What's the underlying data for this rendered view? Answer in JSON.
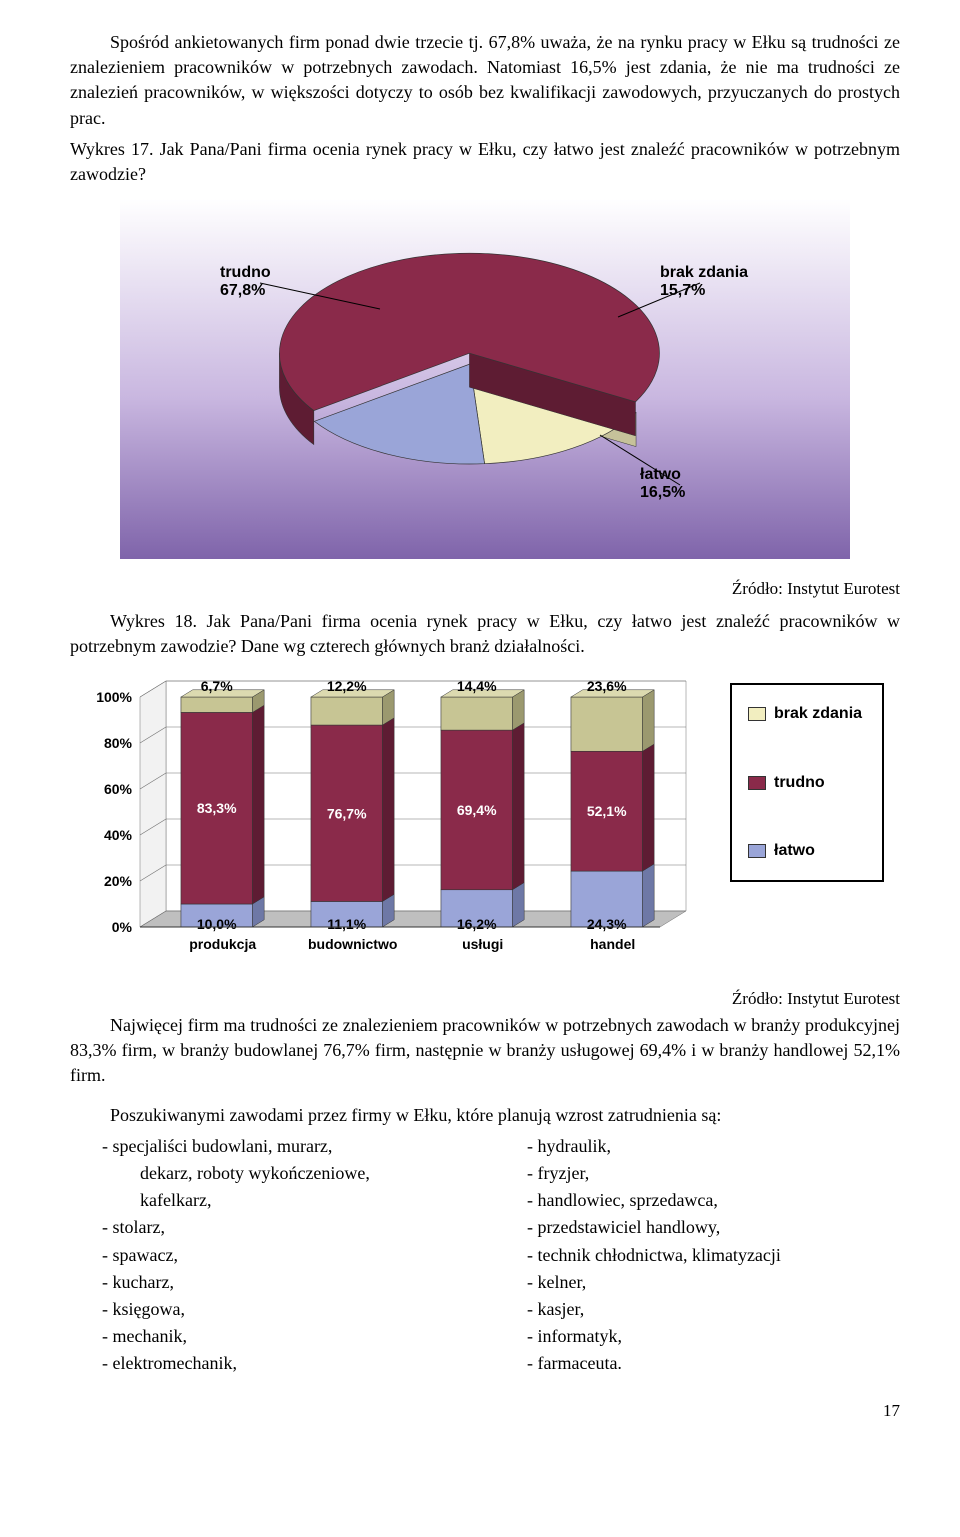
{
  "para1": "Spośród ankietowanych firm ponad dwie trzecie tj. 67,8% uważa, że na rynku pracy w Ełku są trudności ze znalezieniem pracowników w  potrzebnych zawodach. Natomiast 16,5% jest zdania, że nie ma trudności ze znalezień pracowników, w większości dotyczy to osób bez kwalifikacji zawodowych, przyuczanych do prostych prac.",
  "wykres17_caption": "Wykres 17.  Jak Pana/Pani firma ocenia rynek pracy w Ełku, czy łatwo jest znaleźć pracowników w potrzebnym zawodzie?",
  "pie": {
    "type": "pie",
    "slices": [
      {
        "label": "trudno",
        "pct": "67,8%",
        "value": 67.8,
        "color": "#8a2a4a",
        "side_color": "#5e1c33"
      },
      {
        "label": "brak zdania",
        "pct": "15,7%",
        "value": 15.7,
        "color": "#f2eec0",
        "side_color": "#c6c29a"
      },
      {
        "label": "łatwo",
        "pct": "16,5%",
        "value": 16.5,
        "color": "#9aa5d8",
        "side_color": "#6e78a6"
      }
    ],
    "background_top": "#ffffff",
    "background_mid": "#c9b7e0",
    "background_bottom": "#7f64aa",
    "label_font": "Arial",
    "label_fontsize": 16,
    "label_weight": "bold"
  },
  "source": "Źródło: Instytut Eurotest",
  "wykres18_caption": "Wykres 18.  Jak Pana/Pani firma ocenia rynek pracy w Ełku, czy łatwo jest znaleźć pracowników w potrzebnym zawodzie?   Dane wg czterech głównych branż działalności.",
  "bar": {
    "type": "stacked-bar-3d",
    "categories": [
      "produkcja",
      "budownictwo",
      "usługi",
      "handel"
    ],
    "series": [
      {
        "name": "łatwo",
        "color": "#9aa5d8",
        "top_color": "#b8c0e4",
        "side_color": "#6e78a6",
        "values": [
          10.0,
          11.1,
          16.2,
          24.3
        ],
        "labels": [
          "10,0%",
          "11,1%",
          "16,2%",
          "24,3%"
        ]
      },
      {
        "name": "trudno",
        "color": "#8a2a4a",
        "top_color": "#a84a66",
        "side_color": "#5e1c33",
        "values": [
          83.3,
          76.7,
          69.4,
          52.1
        ],
        "labels": [
          "83,3%",
          "76,7%",
          "69,4%",
          "52,1%"
        ]
      },
      {
        "name": "brak zdania",
        "color": "#c7c594",
        "top_color": "#dcdab0",
        "side_color": "#9b996f",
        "values": [
          6.7,
          12.2,
          14.4,
          23.6
        ],
        "labels": [
          "6,7%",
          "12,2%",
          "14,4%",
          "23,6%"
        ]
      }
    ],
    "y_ticks": [
      "0%",
      "20%",
      "40%",
      "60%",
      "80%",
      "100%"
    ],
    "ylim": [
      0,
      100
    ],
    "grid_color": "#707070",
    "floor_color": "#bfbfbf",
    "wall_color": "#e8e8e8",
    "label_font": "Arial",
    "label_fontsize": 14,
    "label_weight": "bold"
  },
  "legend": {
    "items": [
      {
        "label": "brak zdania",
        "color": "#f2eec0"
      },
      {
        "label": "trudno",
        "color": "#8a2a4a"
      },
      {
        "label": "łatwo",
        "color": "#9aa5d8"
      }
    ]
  },
  "para2": "Najwięcej firm ma trudności ze znalezieniem pracowników w potrzebnych zawodach w branży produkcyjnej 83,3% firm, w branży budowlanej 76,7% firm, następnie w branży usługowej 69,4% i w branży  handlowej 52,1% firm.",
  "para3": "Poszukiwanymi zawodami przez firmy w Ełku, które planują wzrost zatrudnienia są:",
  "occupations_left": [
    "- specjaliści budowlani, murarz,",
    "  dekarz, roboty wykończeniowe,",
    "  kafelkarz,",
    "- stolarz,",
    "- spawacz,",
    "- kucharz,",
    "- księgowa,",
    "-  mechanik,",
    "- elektromechanik,"
  ],
  "occupations_right": [
    "- hydraulik,",
    "- fryzjer,",
    "- handlowiec, sprzedawca,",
    "- przedstawiciel handlowy,",
    "- technik chłodnictwa, klimatyzacji",
    "- kelner,",
    "- kasjer,",
    "- informatyk,",
    "- farmaceuta."
  ],
  "page_number": "17"
}
